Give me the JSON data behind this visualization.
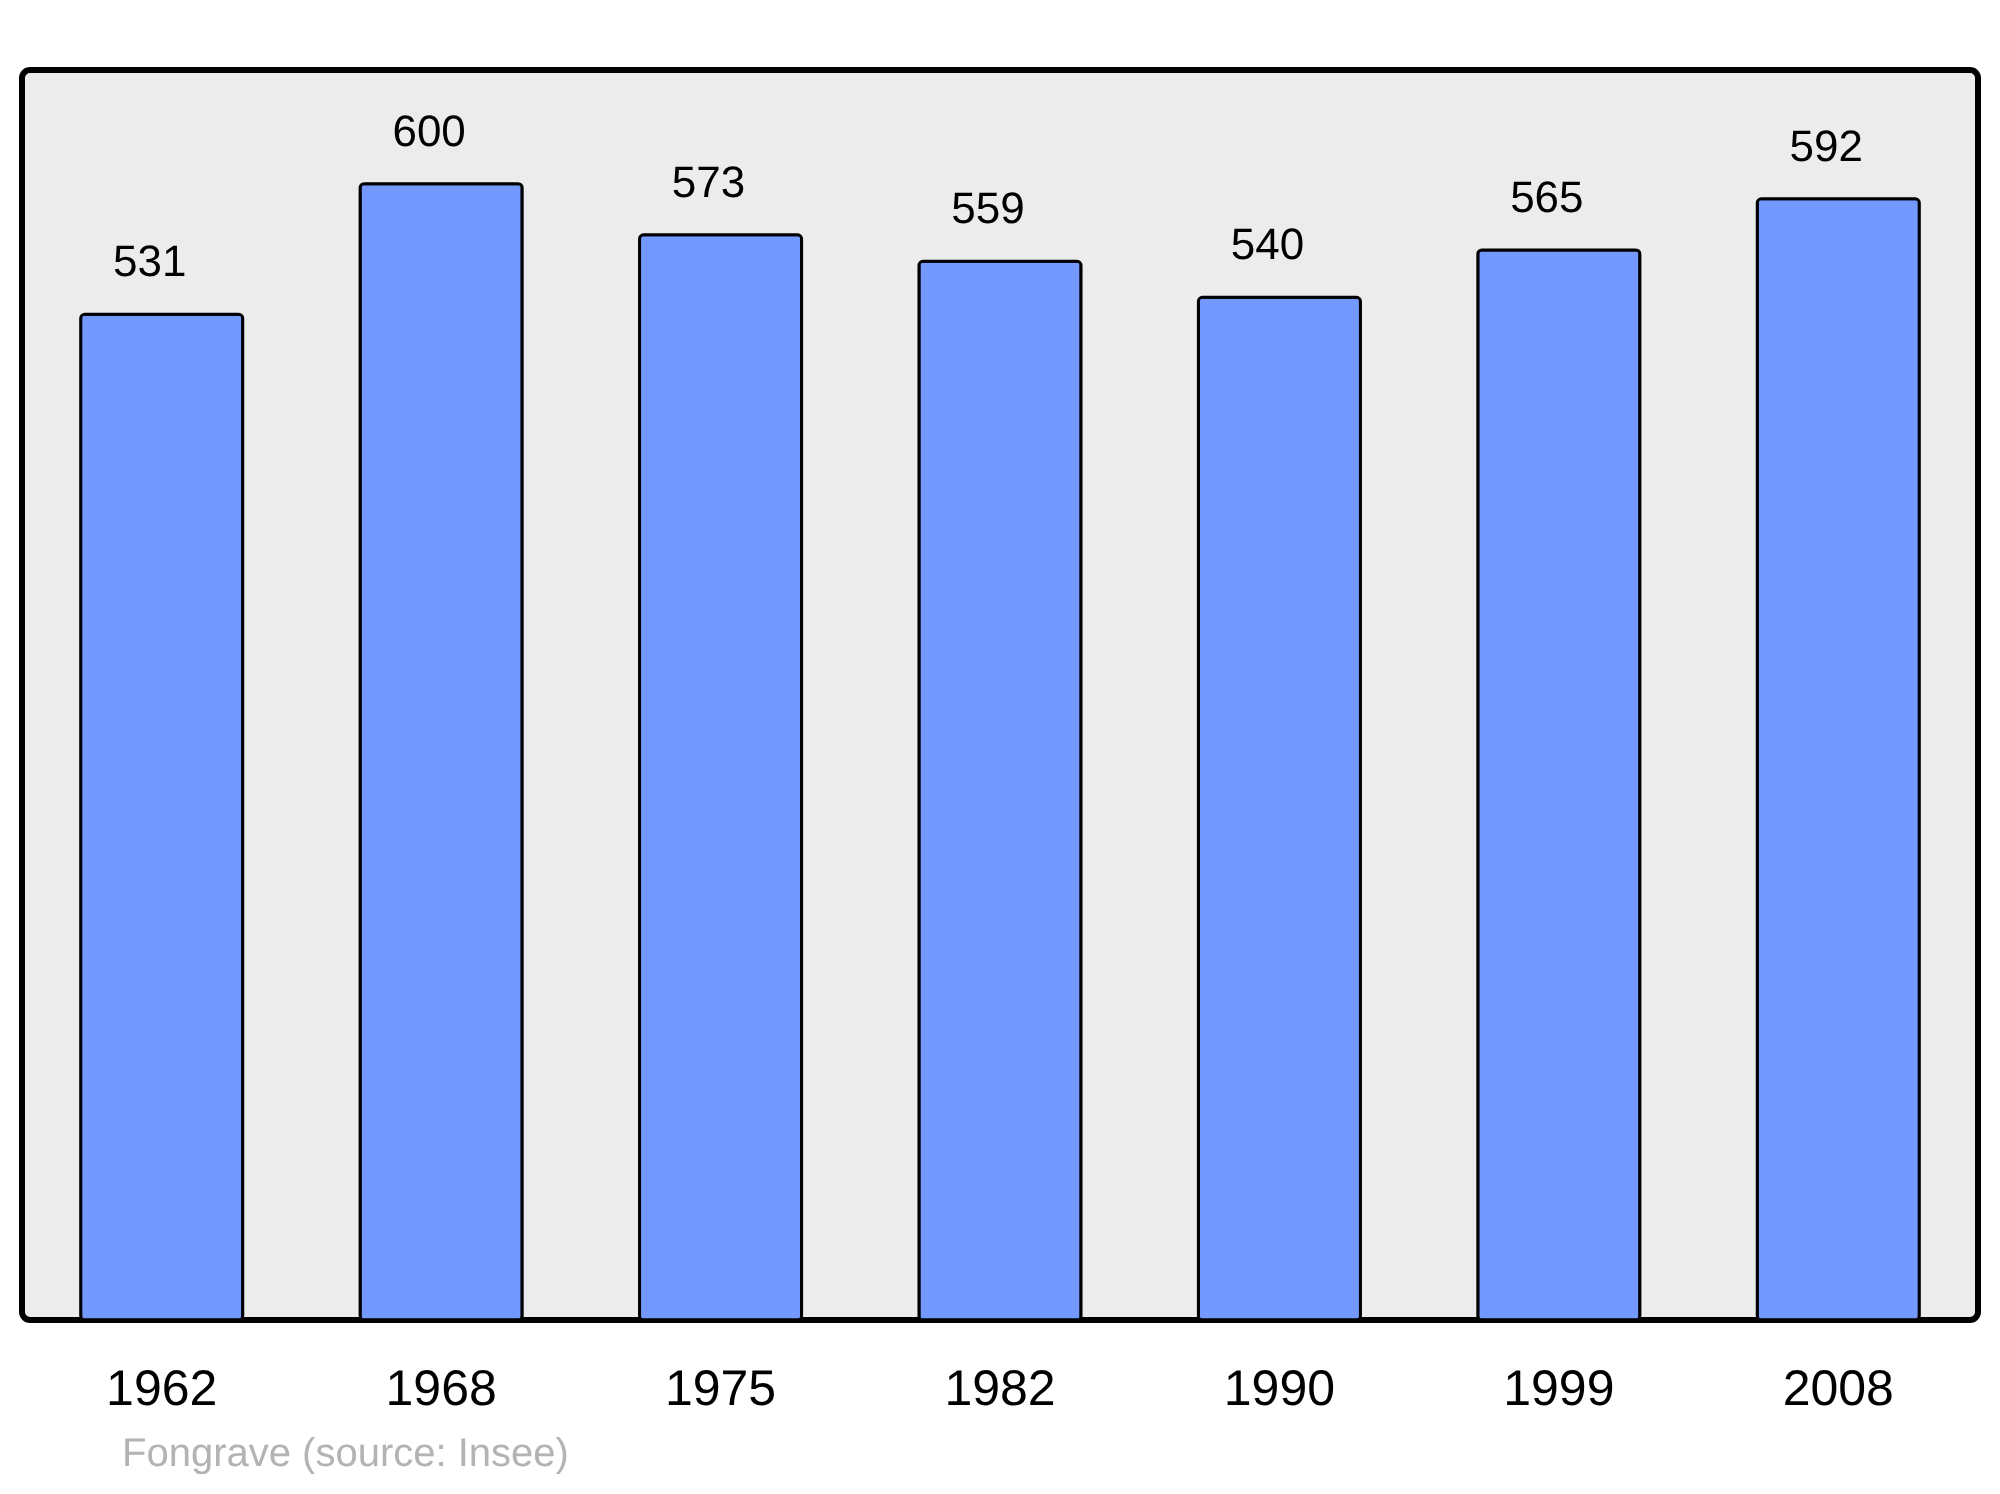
{
  "chart_data": {
    "type": "bar",
    "categories": [
      "1962",
      "1968",
      "1975",
      "1982",
      "1990",
      "1999",
      "2008"
    ],
    "values": [
      531,
      600,
      573,
      559,
      540,
      565,
      592
    ],
    "color": "#7399ff",
    "data_labels": true,
    "annotations": [
      "Fongrave    (source: Insee)"
    ]
  }
}
